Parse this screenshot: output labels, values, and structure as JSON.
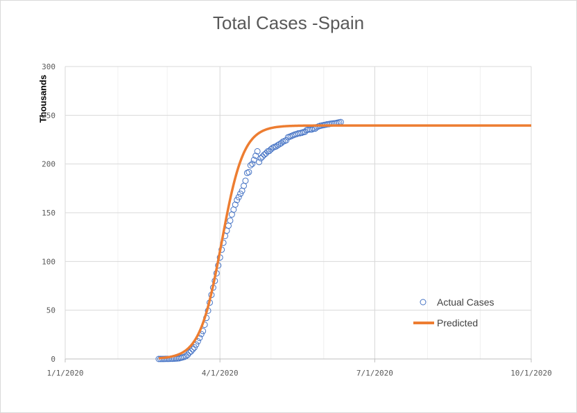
{
  "chart_data": {
    "type": "scatter",
    "title": "Total Cases -Spain",
    "ylabel": "Thousands",
    "xlabel": "",
    "ylim": [
      0,
      300
    ],
    "yticks": [
      0,
      50,
      100,
      150,
      200,
      250,
      300
    ],
    "xlim": [
      "2020-01-01",
      "2020-10-01"
    ],
    "xticks": [
      "2020-01-01",
      "2020-04-01",
      "2020-07-01",
      "2020-10-01"
    ],
    "xtick_labels": [
      "1/1/2020",
      "4/1/2020",
      "7/1/2020",
      "10/1/2020"
    ],
    "grid": true,
    "legend_position": "bottom-right",
    "colors": {
      "actual": "#4472c4",
      "predicted": "#ed7d31"
    },
    "series": [
      {
        "name": "Actual Cases",
        "kind": "scatter",
        "points": [
          [
            "2020-02-25",
            0.0
          ],
          [
            "2020-02-26",
            0.0
          ],
          [
            "2020-02-27",
            0.0
          ],
          [
            "2020-02-28",
            0.0
          ],
          [
            "2020-02-29",
            0.1
          ],
          [
            "2020-03-01",
            0.1
          ],
          [
            "2020-03-02",
            0.1
          ],
          [
            "2020-03-03",
            0.2
          ],
          [
            "2020-03-04",
            0.2
          ],
          [
            "2020-03-05",
            0.3
          ],
          [
            "2020-03-06",
            0.4
          ],
          [
            "2020-03-07",
            0.5
          ],
          [
            "2020-03-08",
            0.7
          ],
          [
            "2020-03-09",
            1.2
          ],
          [
            "2020-03-10",
            1.6
          ],
          [
            "2020-03-11",
            2.1
          ],
          [
            "2020-03-12",
            3.0
          ],
          [
            "2020-03-13",
            4.2
          ],
          [
            "2020-03-14",
            6.4
          ],
          [
            "2020-03-15",
            7.8
          ],
          [
            "2020-03-16",
            9.9
          ],
          [
            "2020-03-17",
            11.8
          ],
          [
            "2020-03-18",
            14.8
          ],
          [
            "2020-03-19",
            18.1
          ],
          [
            "2020-03-20",
            21.6
          ],
          [
            "2020-03-21",
            25.5
          ],
          [
            "2020-03-22",
            28.6
          ],
          [
            "2020-03-23",
            35.1
          ],
          [
            "2020-03-24",
            42.1
          ],
          [
            "2020-03-25",
            49.5
          ],
          [
            "2020-03-26",
            57.8
          ],
          [
            "2020-03-27",
            65.7
          ],
          [
            "2020-03-28",
            73.2
          ],
          [
            "2020-03-29",
            80.1
          ],
          [
            "2020-03-30",
            87.9
          ],
          [
            "2020-03-31",
            95.9
          ],
          [
            "2020-04-01",
            104.1
          ],
          [
            "2020-04-02",
            112.1
          ],
          [
            "2020-04-03",
            119.2
          ],
          [
            "2020-04-04",
            126.2
          ],
          [
            "2020-04-05",
            131.6
          ],
          [
            "2020-04-06",
            136.7
          ],
          [
            "2020-04-07",
            141.9
          ],
          [
            "2020-04-08",
            148.2
          ],
          [
            "2020-04-09",
            153.2
          ],
          [
            "2020-04-10",
            158.3
          ],
          [
            "2020-04-11",
            163.0
          ],
          [
            "2020-04-12",
            166.0
          ],
          [
            "2020-04-13",
            169.5
          ],
          [
            "2020-04-14",
            172.5
          ],
          [
            "2020-04-15",
            177.6
          ],
          [
            "2020-04-16",
            182.8
          ],
          [
            "2020-04-17",
            190.8
          ],
          [
            "2020-04-18",
            191.7
          ],
          [
            "2020-04-19",
            198.7
          ],
          [
            "2020-04-20",
            200.2
          ],
          [
            "2020-04-21",
            204.2
          ],
          [
            "2020-04-22",
            208.4
          ],
          [
            "2020-04-23",
            213.0
          ],
          [
            "2020-04-24",
            202.0
          ],
          [
            "2020-04-25",
            205.9
          ],
          [
            "2020-04-26",
            207.6
          ],
          [
            "2020-04-27",
            209.5
          ],
          [
            "2020-04-28",
            210.8
          ],
          [
            "2020-04-29",
            212.9
          ],
          [
            "2020-04-30",
            213.4
          ],
          [
            "2020-05-01",
            215.2
          ],
          [
            "2020-05-02",
            216.6
          ],
          [
            "2020-05-03",
            217.5
          ],
          [
            "2020-05-04",
            218.0
          ],
          [
            "2020-05-05",
            219.3
          ],
          [
            "2020-05-06",
            220.3
          ],
          [
            "2020-05-07",
            221.4
          ],
          [
            "2020-05-08",
            222.9
          ],
          [
            "2020-05-09",
            223.6
          ],
          [
            "2020-05-10",
            224.4
          ],
          [
            "2020-05-11",
            227.4
          ],
          [
            "2020-05-12",
            228.0
          ],
          [
            "2020-05-13",
            228.7
          ],
          [
            "2020-05-14",
            229.5
          ],
          [
            "2020-05-15",
            230.2
          ],
          [
            "2020-05-16",
            230.7
          ],
          [
            "2020-05-17",
            231.4
          ],
          [
            "2020-05-18",
            231.6
          ],
          [
            "2020-05-19",
            232.0
          ],
          [
            "2020-05-20",
            232.6
          ],
          [
            "2020-05-21",
            233.0
          ],
          [
            "2020-05-22",
            234.8
          ],
          [
            "2020-05-23",
            235.3
          ],
          [
            "2020-05-24",
            235.4
          ],
          [
            "2020-05-25",
            235.4
          ],
          [
            "2020-05-26",
            236.3
          ],
          [
            "2020-05-27",
            236.3
          ],
          [
            "2020-05-28",
            237.9
          ],
          [
            "2020-05-29",
            238.6
          ],
          [
            "2020-05-30",
            239.2
          ],
          [
            "2020-05-31",
            239.6
          ],
          [
            "2020-06-01",
            239.9
          ],
          [
            "2020-06-02",
            240.3
          ],
          [
            "2020-06-03",
            240.7
          ],
          [
            "2020-06-04",
            240.9
          ],
          [
            "2020-06-05",
            241.3
          ],
          [
            "2020-06-06",
            241.5
          ],
          [
            "2020-06-07",
            241.7
          ],
          [
            "2020-06-08",
            241.9
          ],
          [
            "2020-06-09",
            242.3
          ],
          [
            "2020-06-10",
            242.7
          ],
          [
            "2020-06-11",
            243.0
          ]
        ]
      },
      {
        "name": "Predicted",
        "kind": "line",
        "model": {
          "type": "logistic",
          "capacity": 239.5,
          "midpoint": "2020-04-02",
          "rate": 0.155
        },
        "range": [
          "2020-02-25",
          "2020-10-01"
        ]
      }
    ]
  }
}
